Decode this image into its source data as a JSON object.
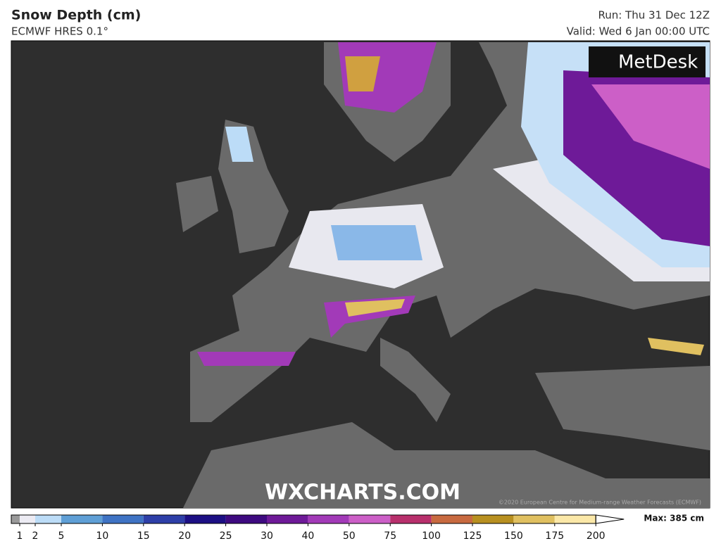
{
  "header": {
    "title": "Snow Depth (cm)",
    "subtitle": "ECMWF HRES 0.1°",
    "run": "Run: Thu 31 Dec 12Z",
    "valid": "Valid: Wed 6 Jan 00:00 UTC"
  },
  "map": {
    "logo": "MetDesk",
    "watermark": "WXCHARTS.COM",
    "copyright": "©2020 European Centre for Medium-range Weather Forecasts (ECMWF)"
  },
  "legend": {
    "ticks": [
      1,
      2,
      5,
      10,
      15,
      20,
      25,
      30,
      40,
      50,
      75,
      100,
      125,
      150,
      175,
      200
    ],
    "colors": [
      "#9a9a9a",
      "#ecebf3",
      "#bcdcf7",
      "#5f9fd6",
      "#3f73c4",
      "#2e3fa8",
      "#1c0f84",
      "#3e0a80",
      "#6e1a98",
      "#a23ab8",
      "#cc5fc7",
      "#b8306c",
      "#c86a40",
      "#b89020",
      "#e0c060",
      "#fbe8a8"
    ],
    "max": "Max: 385 cm"
  }
}
